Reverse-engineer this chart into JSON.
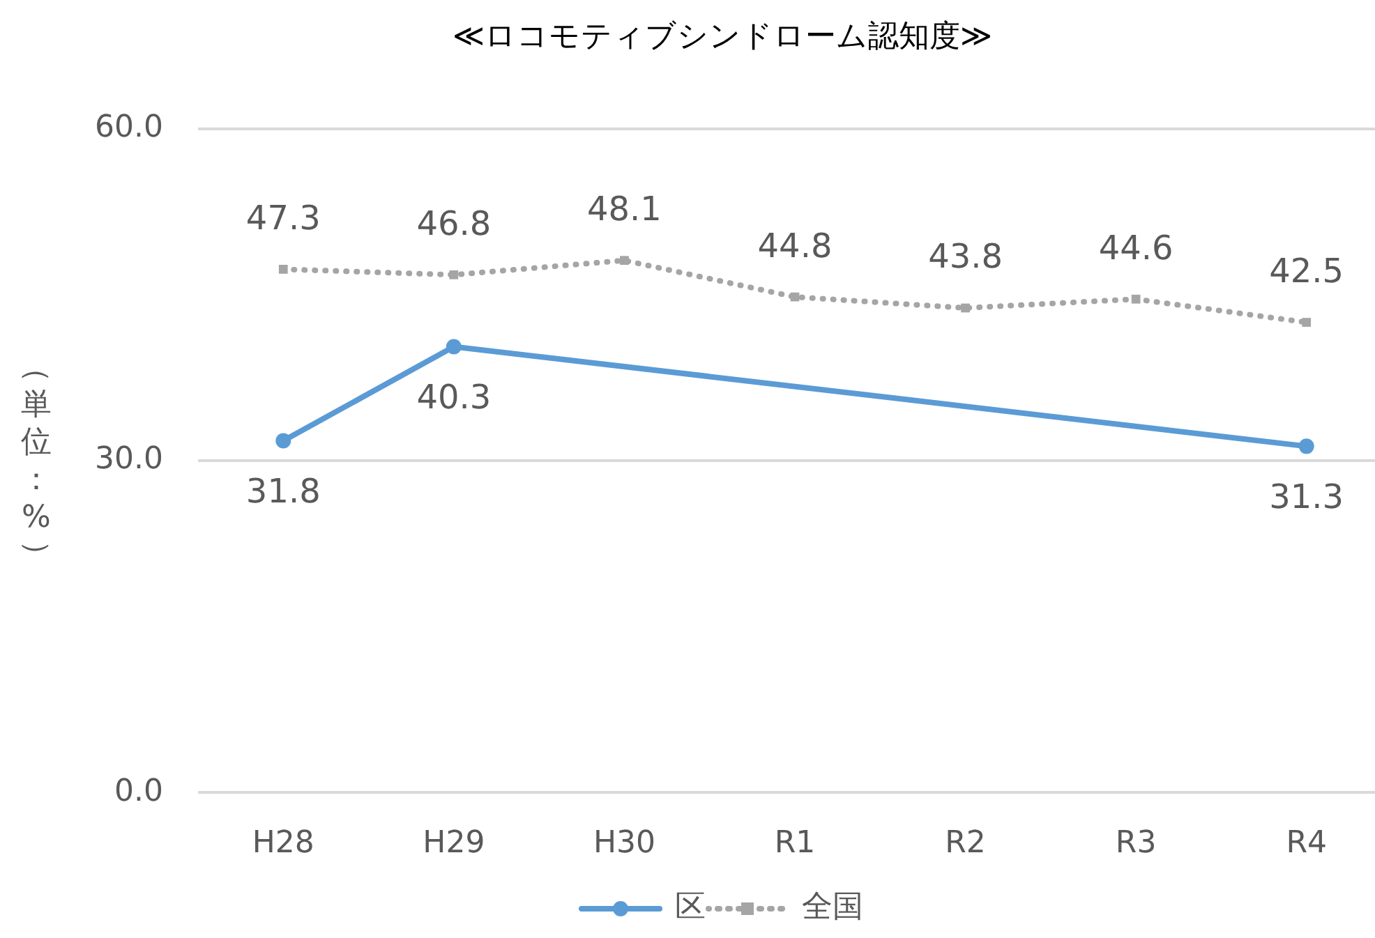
{
  "chart_data": {
    "type": "line",
    "title": "≪ロコモティブシンドローム認知度≫",
    "ylabel": "（単位：%）",
    "categories": [
      "H28",
      "H29",
      "H30",
      "R1",
      "R2",
      "R3",
      "R4"
    ],
    "series": [
      {
        "name": "区",
        "color": "#5b9bd5",
        "marker": "circle",
        "line_style": "solid",
        "values": [
          31.8,
          40.3,
          null,
          null,
          null,
          null,
          31.3
        ]
      },
      {
        "name": "全国",
        "color": "#a5a5a5",
        "marker": "square",
        "line_style": "dotted",
        "values": [
          47.3,
          46.8,
          48.1,
          44.8,
          43.8,
          44.6,
          42.5
        ]
      }
    ],
    "ylim": [
      0,
      60
    ],
    "yticks": [
      {
        "value": 0,
        "label": "0.0"
      },
      {
        "value": 30,
        "label": "30.0"
      },
      {
        "value": 60,
        "label": "60.0"
      }
    ],
    "grid": "y",
    "legend": "bottom",
    "data_labels": true
  }
}
